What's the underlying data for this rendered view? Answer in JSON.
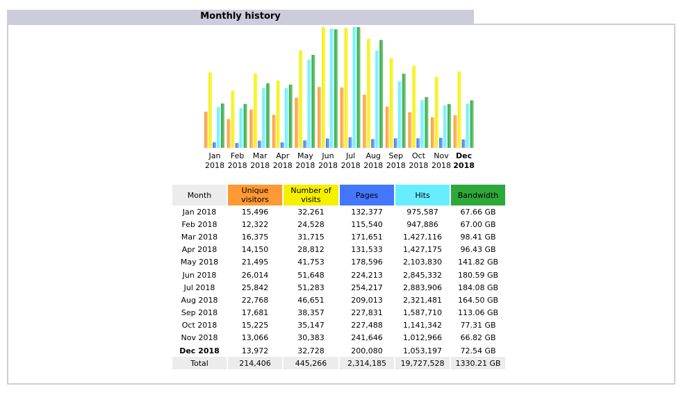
{
  "section_title": "Monthly history",
  "colors": {
    "unique": "#ff9933",
    "visits": "#f4f000",
    "pages": "#4477ff",
    "hits": "#66eeff",
    "bandwidth": "#2ea83a",
    "header_gray": "#ececec"
  },
  "chart_data": {
    "type": "bar",
    "categories": [
      "Jan 2018",
      "Feb 2018",
      "Mar 2018",
      "Apr 2018",
      "May 2018",
      "Jun 2018",
      "Jul 2018",
      "Aug 2018",
      "Sep 2018",
      "Oct 2018",
      "Nov 2018",
      "Dec 2018"
    ],
    "month_labels": [
      "Jan",
      "Feb",
      "Mar",
      "Apr",
      "May",
      "Jun",
      "Jul",
      "Aug",
      "Sep",
      "Oct",
      "Nov",
      "Dec"
    ],
    "year_label": "2018",
    "current_month_index": 11,
    "series": [
      {
        "key": "unique",
        "values": [
          15496,
          12322,
          16375,
          14150,
          21495,
          26014,
          25842,
          22768,
          17681,
          15225,
          13066,
          13972
        ]
      },
      {
        "key": "visits",
        "values": [
          32261,
          24528,
          31715,
          28812,
          41753,
          51648,
          51283,
          46651,
          38357,
          35147,
          30383,
          32728
        ]
      },
      {
        "key": "pages",
        "values": [
          132377,
          115540,
          171651,
          131533,
          178596,
          224213,
          254217,
          209013,
          227831,
          227488,
          241646,
          200080
        ]
      },
      {
        "key": "hits",
        "values": [
          975587,
          947886,
          1427116,
          1427175,
          2103830,
          2845332,
          2883906,
          2321481,
          1587710,
          1141342,
          1012966,
          1053197
        ]
      },
      {
        "key": "bandwidth",
        "values": [
          67.66,
          67.0,
          98.41,
          96.43,
          141.82,
          180.59,
          184.08,
          164.5,
          113.06,
          77.31,
          66.82,
          72.54
        ]
      }
    ]
  },
  "table": {
    "headers": {
      "month": "Month",
      "unique": [
        "Unique",
        "visitors"
      ],
      "visits": [
        "Number of",
        "visits"
      ],
      "pages": "Pages",
      "hits": "Hits",
      "bandwidth": "Bandwidth"
    },
    "rows": [
      [
        "Jan 2018",
        "15,496",
        "32,261",
        "132,377",
        "975,587",
        "67.66 GB"
      ],
      [
        "Feb 2018",
        "12,322",
        "24,528",
        "115,540",
        "947,886",
        "67.00 GB"
      ],
      [
        "Mar 2018",
        "16,375",
        "31,715",
        "171,651",
        "1,427,116",
        "98.41 GB"
      ],
      [
        "Apr 2018",
        "14,150",
        "28,812",
        "131,533",
        "1,427,175",
        "96.43 GB"
      ],
      [
        "May 2018",
        "21,495",
        "41,753",
        "178,596",
        "2,103,830",
        "141.82 GB"
      ],
      [
        "Jun 2018",
        "26,014",
        "51,648",
        "224,213",
        "2,845,332",
        "180.59 GB"
      ],
      [
        "Jul 2018",
        "25,842",
        "51,283",
        "254,217",
        "2,883,906",
        "184.08 GB"
      ],
      [
        "Aug 2018",
        "22,768",
        "46,651",
        "209,013",
        "2,321,481",
        "164.50 GB"
      ],
      [
        "Sep 2018",
        "17,681",
        "38,357",
        "227,831",
        "1,587,710",
        "113.06 GB"
      ],
      [
        "Oct 2018",
        "15,225",
        "35,147",
        "227,488",
        "1,141,342",
        "77.31 GB"
      ],
      [
        "Nov 2018",
        "13,066",
        "30,383",
        "241,646",
        "1,012,966",
        "66.82 GB"
      ],
      [
        "Dec 2018",
        "13,972",
        "32,728",
        "200,080",
        "1,053,197",
        "72.54 GB"
      ]
    ],
    "total": [
      "Total",
      "214,406",
      "445,266",
      "2,314,185",
      "19,727,528",
      "1330.21 GB"
    ]
  }
}
